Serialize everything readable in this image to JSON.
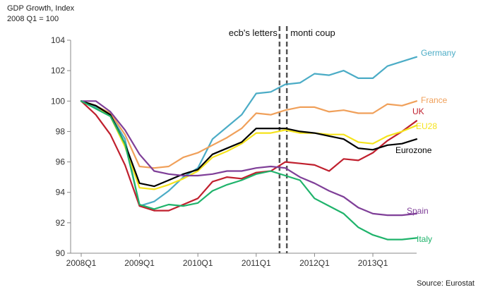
{
  "chart_data": {
    "type": "line",
    "title": "GDP Growth, Index",
    "subtitle": "2008 Q1 = 100",
    "source": "Source: Eurostat",
    "xlabel": "",
    "ylabel": "",
    "ylim": [
      90,
      104
    ],
    "yticks": [
      90,
      92,
      94,
      96,
      98,
      100,
      102,
      104
    ],
    "x_tick_labels": [
      "2008Q1",
      "2009Q1",
      "2010Q1",
      "2011Q1",
      "2012Q1",
      "2013Q1"
    ],
    "x_tick_index": [
      0,
      4,
      8,
      12,
      16,
      20
    ],
    "n_points": 24,
    "grid": false,
    "annotations": [
      {
        "label": "ecb's letters",
        "at_index": 13.6,
        "style": "dashed"
      },
      {
        "label": "monti coup",
        "at_index": 14.1,
        "style": "dashed"
      }
    ],
    "series": [
      {
        "name": "Germany",
        "color": "#4bacc6",
        "values": [
          100,
          99.6,
          99.1,
          97.5,
          93.1,
          93.4,
          94.1,
          95.0,
          95.6,
          97.5,
          98.3,
          99.1,
          100.5,
          100.6,
          101.1,
          101.2,
          101.8,
          101.7,
          102.0,
          101.5,
          101.5,
          102.3,
          102.6,
          102.9
        ]
      },
      {
        "name": "France",
        "color": "#f0a05a",
        "values": [
          100,
          99.7,
          99.2,
          97.8,
          95.7,
          95.6,
          95.7,
          96.3,
          96.6,
          97.1,
          97.6,
          98.2,
          99.2,
          99.1,
          99.4,
          99.6,
          99.6,
          99.3,
          99.4,
          99.2,
          99.2,
          99.8,
          99.7,
          100.0
        ]
      },
      {
        "name": "UK",
        "color": "#c0202e",
        "values": [
          100,
          99.1,
          97.8,
          95.8,
          93.1,
          92.8,
          92.8,
          93.2,
          93.6,
          94.7,
          95.0,
          94.9,
          95.3,
          95.4,
          96.0,
          95.9,
          95.8,
          95.4,
          96.2,
          96.1,
          96.6,
          97.4,
          98.0,
          98.7
        ]
      },
      {
        "name": "EU28",
        "color": "#f5e31c",
        "values": [
          100,
          99.7,
          99.0,
          97.0,
          94.3,
          94.2,
          94.5,
          94.9,
          95.4,
          96.3,
          96.7,
          97.2,
          97.9,
          97.9,
          98.1,
          97.9,
          97.9,
          97.8,
          97.8,
          97.3,
          97.2,
          97.7,
          98.0,
          98.4
        ]
      },
      {
        "name": "Eurozone",
        "color": "#000000",
        "values": [
          100,
          99.7,
          99.1,
          97.2,
          94.6,
          94.4,
          94.8,
          95.2,
          95.5,
          96.5,
          96.9,
          97.3,
          98.2,
          98.2,
          98.2,
          98.0,
          97.9,
          97.7,
          97.5,
          96.9,
          96.8,
          97.1,
          97.2,
          97.5
        ]
      },
      {
        "name": "Spain",
        "color": "#7f3f98",
        "values": [
          100,
          100.0,
          99.3,
          98.1,
          96.5,
          95.4,
          95.2,
          95.1,
          95.1,
          95.2,
          95.4,
          95.4,
          95.6,
          95.7,
          95.6,
          95.0,
          94.6,
          94.1,
          93.7,
          93.0,
          92.6,
          92.5,
          92.5,
          92.6
        ]
      },
      {
        "name": "Italy",
        "color": "#1fb36b",
        "values": [
          100,
          99.5,
          99.0,
          97.2,
          93.2,
          92.9,
          93.2,
          93.1,
          93.3,
          94.1,
          94.5,
          94.8,
          95.2,
          95.4,
          95.1,
          94.8,
          93.6,
          93.1,
          92.6,
          91.7,
          91.2,
          90.9,
          90.9,
          91.0
        ]
      }
    ]
  }
}
